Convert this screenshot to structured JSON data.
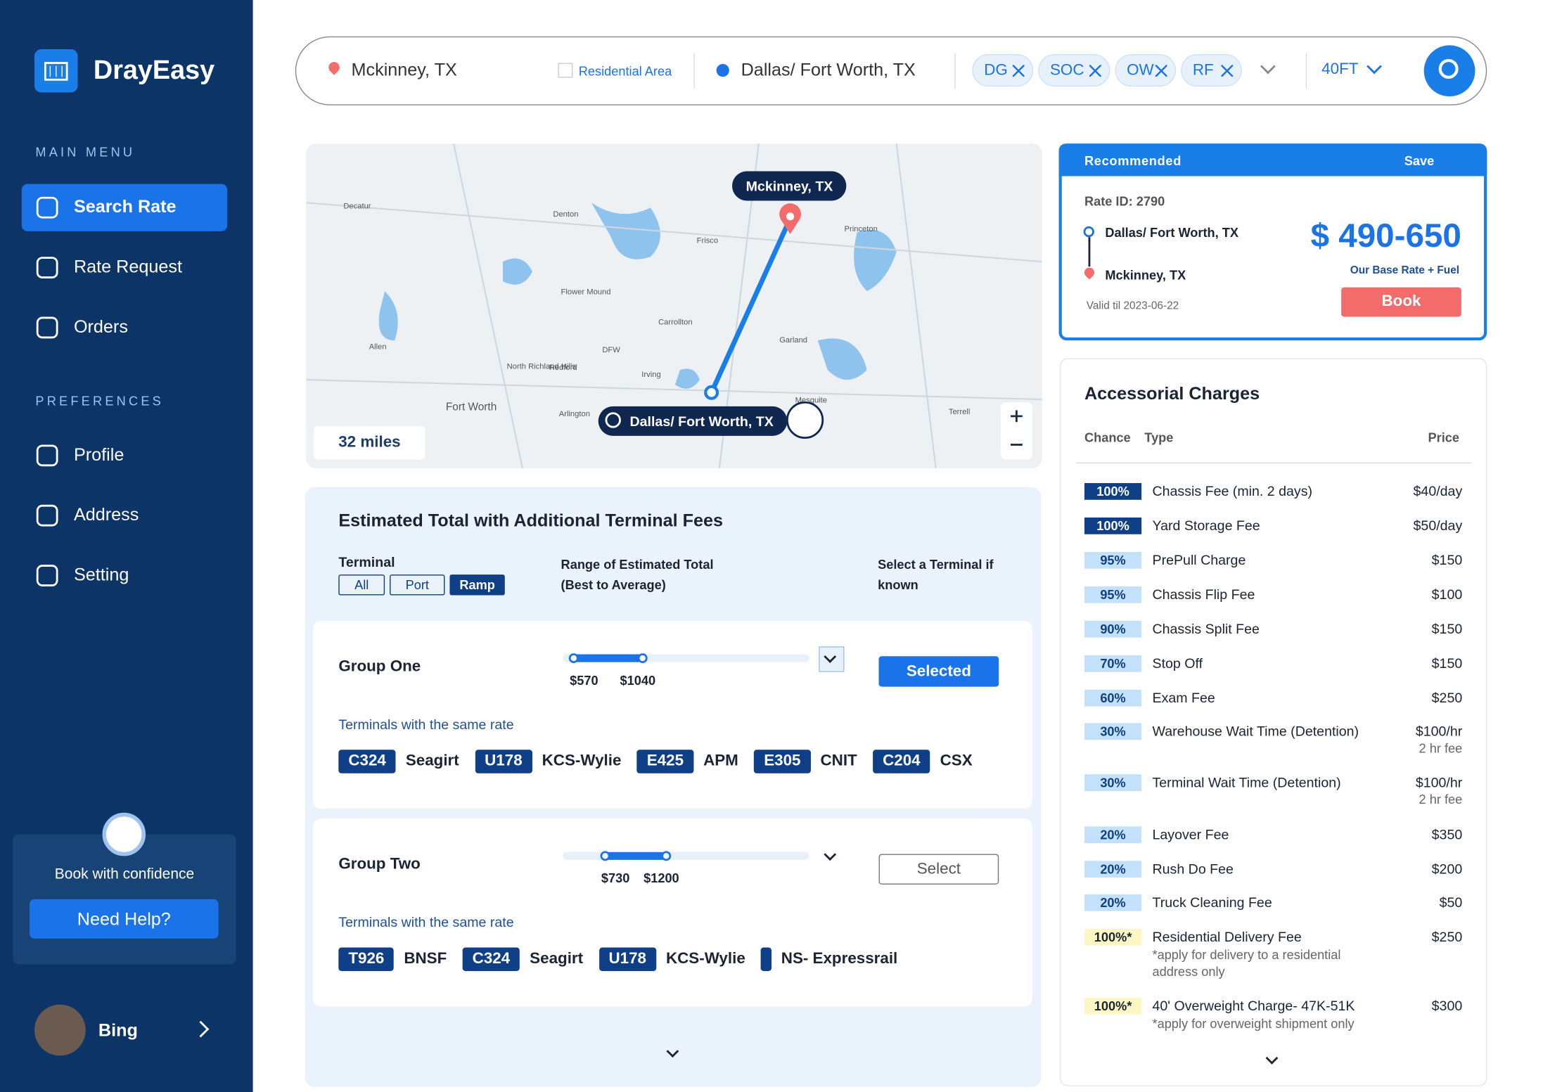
{
  "brand": "DrayEasy",
  "sidebar": {
    "main_menu_title": "MAIN MENU",
    "main_menu": [
      "Search Rate",
      "Rate Request",
      "Orders"
    ],
    "preferences_title": "PREFERENCES",
    "preferences": [
      "Profile",
      "Address",
      "Setting"
    ],
    "help": {
      "text": "Book with confidence",
      "button": "Need Help?"
    },
    "user": "Bing"
  },
  "search": {
    "origin": "Mckinney, TX",
    "residential": "Residential Area",
    "destination": "Dallas/ Fort Worth, TX",
    "tags": [
      "DG",
      "SOC",
      "OW",
      "RF"
    ],
    "container": "40FT"
  },
  "map": {
    "origin_label": "Mckinney, TX",
    "destination_label": "Dallas/ Fort Worth, TX",
    "distance": "32 miles",
    "places": [
      "Decatur",
      "Denton",
      "Frisco",
      "Flower Mound",
      "Carrollton",
      "Garland",
      "Irving",
      "Arlington",
      "Fort Worth",
      "Mesquite",
      "Terrell",
      "Princeton",
      "North Richland Hills",
      "Redford",
      "Allen",
      "DFW"
    ]
  },
  "estimate": {
    "title": "Estimated Total with Additional Terminal Fees",
    "terminal_label": "Terminal",
    "filters": [
      "All",
      "Port",
      "Ramp"
    ],
    "range_header": "Range of Estimated Total (Best to Average)",
    "select_header": "Select a Terminal if known",
    "groups": [
      {
        "name": "Group One",
        "min": "$570",
        "max": "$1040",
        "button": "Selected",
        "same_rate_label": "Terminals with the same rate",
        "terminals": [
          {
            "code": "C324",
            "name": "Seagirt"
          },
          {
            "code": "U178",
            "name": "KCS-Wylie"
          },
          {
            "code": "E425",
            "name": "APM"
          },
          {
            "code": "E305",
            "name": "CNIT"
          },
          {
            "code": "C204",
            "name": "CSX"
          }
        ]
      },
      {
        "name": "Group Two",
        "min": "$730",
        "max": "$1200",
        "button": "Select",
        "same_rate_label": "Terminals with the same rate",
        "terminals": [
          {
            "code": "T926",
            "name": "BNSF"
          },
          {
            "code": "C324",
            "name": "Seagirt"
          },
          {
            "code": "U178",
            "name": "KCS-Wylie"
          },
          {
            "name": "NS- Expressrail"
          }
        ]
      }
    ]
  },
  "recommended": {
    "label": "Recommended",
    "save": "Save",
    "rate_id": "Rate ID: 2790",
    "from": "Dallas/ Fort Worth, TX",
    "to": "Mckinney, TX",
    "price": "$ 490-650",
    "price_note": "Our Base Rate + Fuel",
    "valid": "Valid til 2023-06-22",
    "button": "Book"
  },
  "accessorial": {
    "title": "Accessorial Charges",
    "columns": [
      "Chance",
      "Type",
      "Price"
    ],
    "rows": [
      {
        "chance": "100%",
        "type": "Chassis Fee (min. 2 days)",
        "price": "$40/day"
      },
      {
        "chance": "100%",
        "type": "Yard Storage Fee",
        "price": "$50/day"
      },
      {
        "chance": "95%",
        "type": "PrePull Charge",
        "price": "$150"
      },
      {
        "chance": "95%",
        "type": "Chassis Flip Fee",
        "price": "$100"
      },
      {
        "chance": "90%",
        "type": "Chassis Split Fee",
        "price": "$150"
      },
      {
        "chance": "70%",
        "type": "Stop Off",
        "price": "$150"
      },
      {
        "chance": "60%",
        "type": "Exam Fee",
        "price": "$250"
      },
      {
        "chance": "30%",
        "type": "Warehouse Wait Time (Detention)",
        "price": "$100/hr",
        "price_note": "2 hr fee"
      },
      {
        "chance": "30%",
        "type": "Terminal Wait Time (Detention)",
        "price": "$100/hr",
        "price_note": "2 hr fee"
      },
      {
        "chance": "20%",
        "type": "Layover Fee",
        "price": "$350"
      },
      {
        "chance": "20%",
        "type": "Rush Do Fee",
        "price": "$200"
      },
      {
        "chance": "20%",
        "type": "Truck Cleaning Fee",
        "price": "$50"
      },
      {
        "chance": "100%*",
        "type": "Residential Delivery Fee",
        "type_note": "*apply for delivery to a residential address only",
        "price": "$250"
      },
      {
        "chance": "100%*",
        "type": "40' Overweight Charge- 47K-51K",
        "type_note": "*apply for overweight shipment only",
        "price": "$300"
      }
    ]
  }
}
